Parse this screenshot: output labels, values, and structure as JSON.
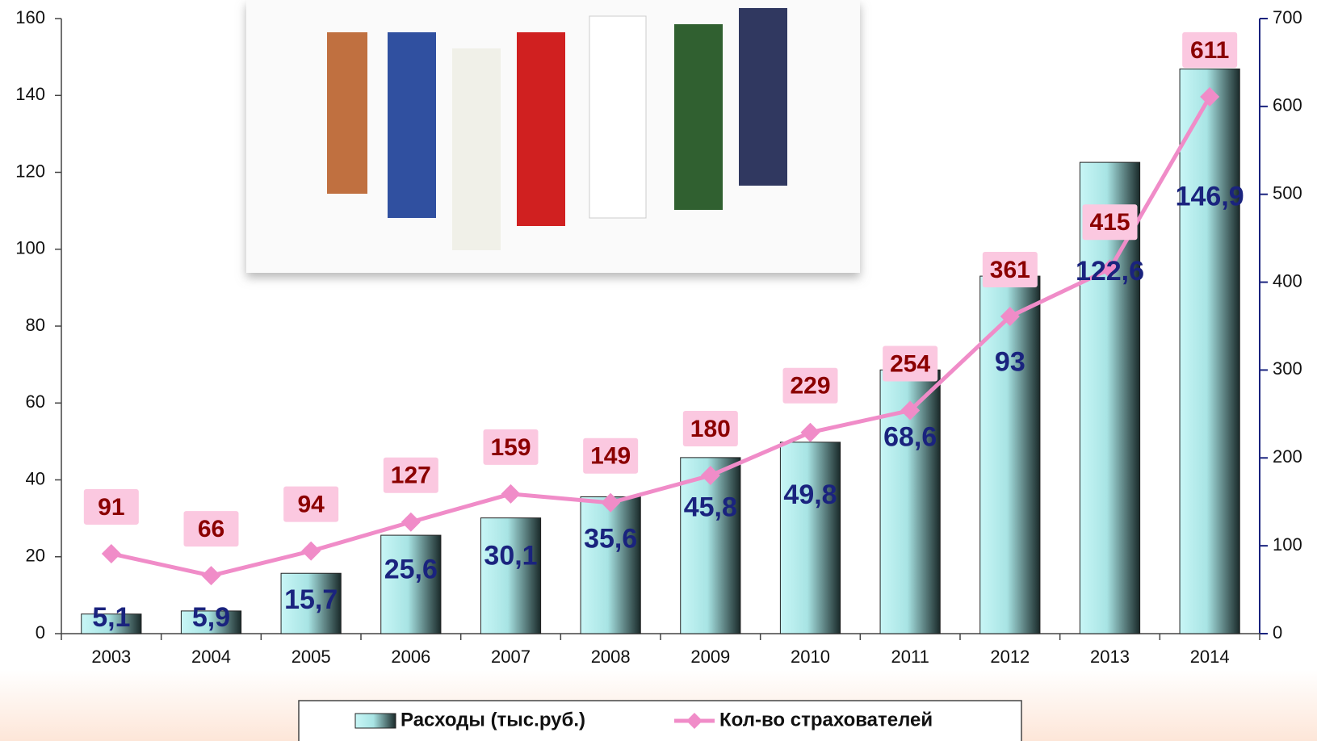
{
  "chart_data": {
    "type": "bar",
    "categories": [
      "2003",
      "2004",
      "2005",
      "2006",
      "2007",
      "2008",
      "2009",
      "2010",
      "2011",
      "2012",
      "2013",
      "2014"
    ],
    "series": [
      {
        "name": "Расходы (тыс.руб.)",
        "color": "#bff0f0",
        "values": [
          5.1,
          5.9,
          15.7,
          25.6,
          30.1,
          35.6,
          45.8,
          49.8,
          68.6,
          93,
          122.6,
          146.9
        ],
        "value_labels": [
          "5,1",
          "5,9",
          "15,7",
          "25,6",
          "30,1",
          "35,6",
          "45,8",
          "49,8",
          "68,6",
          "93",
          "122,6",
          "146,9"
        ]
      },
      {
        "name": "Кол-во страхователей",
        "type": "line",
        "axis": "y2",
        "color": "#f08cc8",
        "values": [
          91,
          66,
          94,
          127,
          159,
          149,
          180,
          229,
          254,
          361,
          415,
          611
        ]
      }
    ],
    "ylim": [
      0,
      160
    ],
    "yticks": [
      0,
      20,
      40,
      60,
      80,
      100,
      120,
      140,
      160
    ],
    "y2lim": [
      0,
      700
    ],
    "y2ticks": [
      0,
      100,
      200,
      300,
      400,
      500,
      600,
      700
    ],
    "grid": false,
    "legend": "bottom"
  }
}
